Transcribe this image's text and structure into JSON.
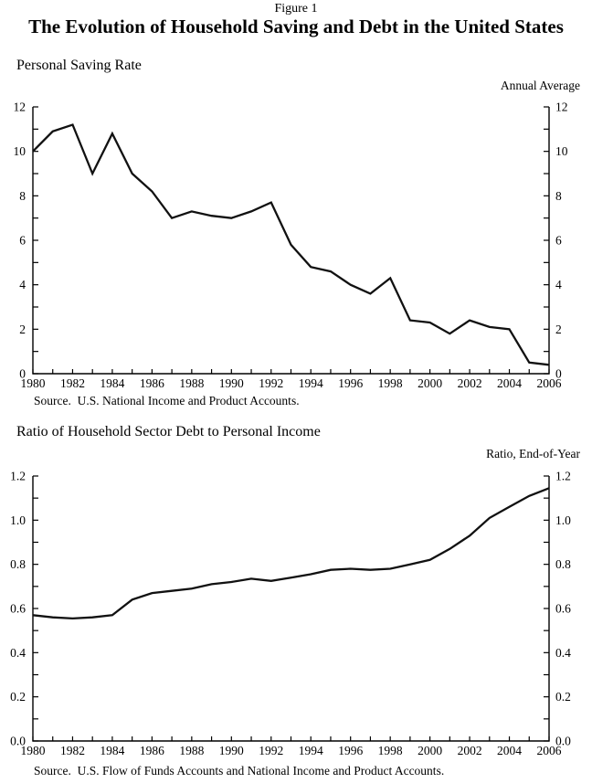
{
  "header": {
    "figure_label": "Figure 1",
    "title": "The Evolution of Household Saving and Debt in the United States"
  },
  "chart_data": [
    {
      "type": "line",
      "title": "Personal Saving Rate",
      "unit_label": "Annual Average",
      "source": "Source.  U.S. National Income and Product Accounts.",
      "x": [
        1980,
        1981,
        1982,
        1983,
        1984,
        1985,
        1986,
        1987,
        1988,
        1989,
        1990,
        1991,
        1992,
        1993,
        1994,
        1995,
        1996,
        1997,
        1998,
        1999,
        2000,
        2001,
        2002,
        2003,
        2004,
        2005,
        2006
      ],
      "series": [
        {
          "name": "Personal saving rate (percent, annual average)",
          "values": [
            10.0,
            10.9,
            11.2,
            9.0,
            10.8,
            9.0,
            8.2,
            7.0,
            7.3,
            7.1,
            7.0,
            7.3,
            7.7,
            5.8,
            4.8,
            4.6,
            4.0,
            3.6,
            4.3,
            2.4,
            2.3,
            1.8,
            2.4,
            2.1,
            2.0,
            0.5,
            0.4
          ]
        }
      ],
      "xlim": [
        1980,
        2006
      ],
      "ylim": [
        0,
        12
      ],
      "xtick_step": 2,
      "xminor_step": 1,
      "ytick_step": 2,
      "yminor_step": 1,
      "ytick_decimals": 0,
      "grid": false,
      "legend": "none",
      "line_color": "#111111",
      "axis_color": "#000000"
    },
    {
      "type": "line",
      "title": "Ratio of Household Sector Debt to Personal Income",
      "unit_label": "Ratio, End-of-Year",
      "source": "Source.  U.S. Flow of Funds Accounts and National Income and Product Accounts.",
      "x": [
        1980,
        1981,
        1982,
        1983,
        1984,
        1985,
        1986,
        1987,
        1988,
        1989,
        1990,
        1991,
        1992,
        1993,
        1994,
        1995,
        1996,
        1997,
        1998,
        1999,
        2000,
        2001,
        2002,
        2003,
        2004,
        2005,
        2006
      ],
      "series": [
        {
          "name": "Household debt to personal income ratio (end of year)",
          "values": [
            0.57,
            0.56,
            0.555,
            0.56,
            0.57,
            0.64,
            0.67,
            0.68,
            0.69,
            0.71,
            0.72,
            0.735,
            0.725,
            0.74,
            0.755,
            0.775,
            0.78,
            0.775,
            0.78,
            0.8,
            0.82,
            0.87,
            0.93,
            1.01,
            1.06,
            1.11,
            1.145
          ]
        }
      ],
      "xlim": [
        1980,
        2006
      ],
      "ylim": [
        0,
        1.2
      ],
      "xtick_step": 2,
      "xminor_step": 1,
      "ytick_step": 0.2,
      "yminor_step": 0.1,
      "ytick_decimals": 1,
      "grid": false,
      "legend": "none",
      "line_color": "#111111",
      "axis_color": "#000000"
    }
  ]
}
